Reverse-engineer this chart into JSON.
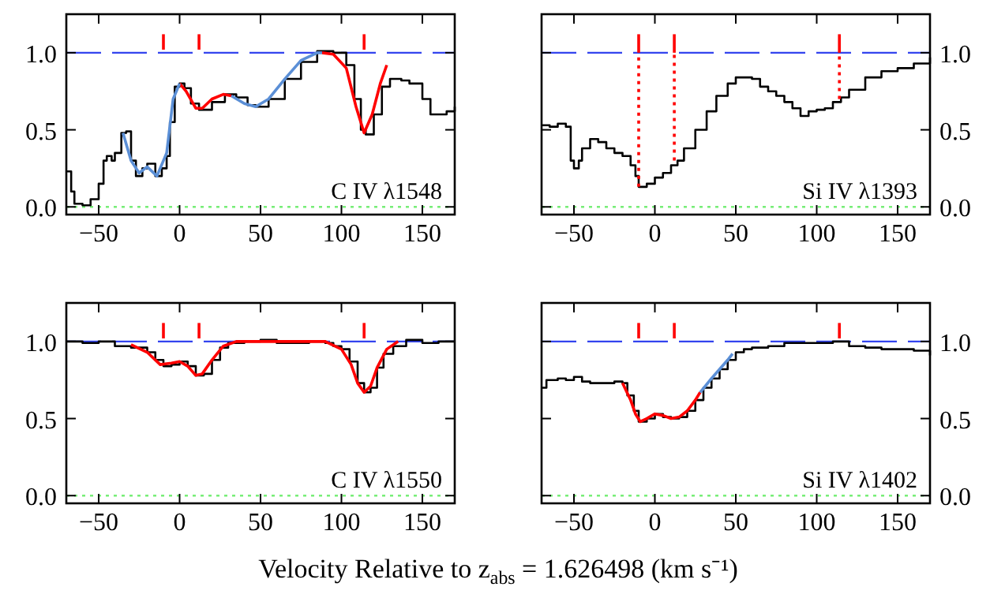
{
  "chart_data": [
    {
      "type": "step",
      "title": "C IV λ1548",
      "xlim": [
        -70,
        170
      ],
      "xticks": [
        -50,
        0,
        50,
        100,
        150
      ],
      "ylim": [
        -0.05,
        1.25
      ],
      "yticks": [
        {
          "value": 0,
          "label": "0.0"
        },
        {
          "value": 0.5,
          "label": "0.5"
        },
        {
          "value": 1,
          "label": "1.0"
        }
      ],
      "ref_lines": [
        {
          "axis": "y",
          "value": 1,
          "color": "#3344ee",
          "line_style": "dashed"
        },
        {
          "axis": "y",
          "value": 0,
          "color": "#77ee77",
          "line_style": "dotted"
        }
      ],
      "series": [
        {
          "color": "#000000",
          "x": [
            -70,
            -67,
            -65,
            -60,
            -55,
            -50,
            -47,
            -45,
            -42,
            -40,
            -36,
            -33,
            -30,
            -27,
            -23,
            -20,
            -15,
            -11,
            -8,
            -6,
            -3,
            0,
            3,
            7,
            12,
            20,
            28,
            35,
            42,
            47,
            55,
            65,
            75,
            85,
            95,
            103,
            108,
            112,
            115,
            120,
            125,
            130,
            137,
            142,
            150,
            155,
            160,
            165,
            170
          ],
          "values": [
            0.23,
            0.1,
            0.02,
            0.01,
            0.05,
            0.15,
            0.3,
            0.33,
            0.3,
            0.35,
            0.48,
            0.49,
            0.3,
            0.2,
            0.25,
            0.28,
            0.2,
            0.25,
            0.33,
            0.55,
            0.78,
            0.8,
            0.77,
            0.67,
            0.63,
            0.68,
            0.73,
            0.71,
            0.66,
            0.65,
            0.7,
            0.83,
            0.94,
            1.01,
            1.0,
            0.92,
            0.7,
            0.5,
            0.47,
            0.6,
            0.78,
            0.83,
            0.82,
            0.8,
            0.7,
            0.6,
            0.6,
            0.62,
            0.65
          ]
        },
        {
          "type": "line",
          "color": "#ff0000",
          "x": [
            0,
            4,
            10,
            14,
            20,
            27,
            32,
            60,
            88,
            95,
            103,
            109,
            114,
            119,
            124,
            128
          ],
          "values": [
            0.8,
            0.75,
            0.64,
            0.64,
            0.7,
            0.73,
            0.72,
            null,
            1.0,
            0.99,
            0.9,
            0.65,
            0.48,
            0.6,
            0.8,
            0.92
          ]
        },
        {
          "type": "line",
          "color": "#5b8fd6",
          "x": [
            -35,
            -30,
            -25,
            -20,
            -14,
            -8,
            -4,
            0,
            16,
            32,
            40,
            47,
            55,
            65,
            75,
            85,
            88
          ],
          "values": [
            0.48,
            0.3,
            0.22,
            0.26,
            0.2,
            0.35,
            0.7,
            0.8,
            null,
            0.72,
            0.67,
            0.65,
            0.7,
            0.83,
            0.95,
            1.0,
            1.0
          ]
        },
        {
          "type": "line",
          "color": "#ff0000",
          "x": [
            -10,
            -10
          ],
          "values": [
            1.02,
            1.12
          ]
        },
        {
          "type": "line",
          "color": "#ff0000",
          "x": [
            12,
            12
          ],
          "values": [
            1.02,
            1.12
          ]
        },
        {
          "type": "line",
          "color": "#ff0000",
          "x": [
            114,
            114
          ],
          "values": [
            1.02,
            1.12
          ]
        }
      ]
    },
    {
      "type": "step",
      "title": "Si IV λ1393",
      "xlim": [
        -70,
        170
      ],
      "xticks": [
        -50,
        0,
        50,
        100,
        150
      ],
      "ylim": [
        -0.05,
        1.25
      ],
      "yticks": [
        {
          "value": 0,
          "label": "0.0"
        },
        {
          "value": 0.5,
          "label": "0.5"
        },
        {
          "value": 1,
          "label": "1.0"
        }
      ],
      "ref_lines": [
        {
          "axis": "y",
          "value": 1,
          "color": "#3344ee",
          "line_style": "dashed"
        },
        {
          "axis": "y",
          "value": 0,
          "color": "#77ee77",
          "line_style": "dotted"
        }
      ],
      "series": [
        {
          "color": "#000000",
          "x": [
            -70,
            -65,
            -60,
            -55,
            -52,
            -50,
            -47,
            -45,
            -40,
            -35,
            -30,
            -25,
            -20,
            -15,
            -12,
            -10,
            -5,
            0,
            5,
            10,
            14,
            18,
            25,
            32,
            38,
            45,
            50,
            55,
            60,
            65,
            70,
            75,
            80,
            85,
            90,
            95,
            100,
            105,
            110,
            115,
            120,
            130,
            140,
            150,
            160,
            170
          ],
          "values": [
            0.53,
            0.52,
            0.54,
            0.52,
            0.3,
            0.25,
            0.3,
            0.38,
            0.44,
            0.42,
            0.38,
            0.35,
            0.33,
            0.27,
            0.2,
            0.13,
            0.15,
            0.19,
            0.22,
            0.27,
            0.3,
            0.38,
            0.5,
            0.62,
            0.72,
            0.8,
            0.84,
            0.84,
            0.83,
            0.78,
            0.75,
            0.72,
            0.68,
            0.64,
            0.59,
            0.62,
            0.63,
            0.64,
            0.68,
            0.71,
            0.76,
            0.84,
            0.88,
            0.9,
            0.93,
            0.97
          ]
        },
        {
          "type": "line",
          "color": "#ff0000",
          "x": [
            -10,
            -10
          ],
          "values": [
            1.0,
            1.12
          ]
        },
        {
          "type": "line",
          "color": "#ff0000",
          "x": [
            12,
            12
          ],
          "values": [
            1.0,
            1.12
          ]
        },
        {
          "type": "line",
          "color": "#ff0000",
          "x": [
            114,
            114
          ],
          "values": [
            1.0,
            1.12
          ]
        },
        {
          "type": "line",
          "color": "#ff0000",
          "line_style": "dotted",
          "x": [
            -10,
            -10
          ],
          "values": [
            0.13,
            1.0
          ]
        },
        {
          "type": "line",
          "color": "#ff0000",
          "line_style": "dotted",
          "x": [
            12,
            12
          ],
          "values": [
            0.3,
            1.0
          ]
        },
        {
          "type": "line",
          "color": "#ff0000",
          "line_style": "dotted",
          "x": [
            114,
            114
          ],
          "values": [
            0.7,
            1.0
          ]
        }
      ]
    },
    {
      "type": "step",
      "title": "C IV λ1550",
      "xlabel": "Velocity Relative to z$_{abs}$ = 1.626498 (km s⁻¹)",
      "xlim": [
        -70,
        170
      ],
      "xticks": [
        -50,
        0,
        50,
        100,
        150
      ],
      "ylim": [
        -0.05,
        1.25
      ],
      "yticks": [
        {
          "value": 0,
          "label": "0.0"
        },
        {
          "value": 0.5,
          "label": "0.5"
        },
        {
          "value": 1,
          "label": "1.0"
        }
      ],
      "ref_lines": [
        {
          "axis": "y",
          "value": 1,
          "color": "#3344ee",
          "line_style": "dashed"
        },
        {
          "axis": "y",
          "value": 0,
          "color": "#77ee77",
          "line_style": "dotted"
        }
      ],
      "series": [
        {
          "color": "#000000",
          "x": [
            -70,
            -60,
            -50,
            -40,
            -30,
            -20,
            -15,
            -10,
            -5,
            0,
            5,
            10,
            15,
            20,
            25,
            30,
            40,
            50,
            60,
            70,
            80,
            90,
            95,
            100,
            105,
            110,
            114,
            118,
            122,
            126,
            132,
            140,
            150,
            160,
            170
          ],
          "values": [
            1.0,
            0.99,
            1.0,
            0.97,
            0.96,
            0.93,
            0.88,
            0.84,
            0.85,
            0.87,
            0.84,
            0.78,
            0.79,
            0.88,
            0.96,
            0.99,
            1.0,
            1.01,
            0.99,
            0.99,
            1.0,
            0.99,
            0.97,
            0.95,
            0.87,
            0.73,
            0.67,
            0.7,
            0.83,
            0.92,
            0.97,
            1.01,
            0.99,
            1.0,
            1.0
          ]
        },
        {
          "type": "line",
          "color": "#ff0000",
          "x": [
            -30,
            -20,
            -12,
            -5,
            0,
            5,
            10,
            14,
            20,
            27,
            35,
            90,
            100,
            106,
            110,
            114,
            118,
            122,
            128,
            135
          ],
          "values": [
            0.98,
            0.93,
            0.85,
            0.86,
            0.87,
            0.84,
            0.78,
            0.79,
            0.88,
            0.97,
            1.0,
            1.0,
            0.95,
            0.85,
            0.73,
            0.67,
            0.71,
            0.83,
            0.95,
            1.0
          ]
        },
        {
          "type": "line",
          "color": "#ff0000",
          "x": [
            -10,
            -10
          ],
          "values": [
            1.02,
            1.12
          ]
        },
        {
          "type": "line",
          "color": "#ff0000",
          "x": [
            12,
            12
          ],
          "values": [
            1.02,
            1.12
          ]
        },
        {
          "type": "line",
          "color": "#ff0000",
          "x": [
            114,
            114
          ],
          "values": [
            1.02,
            1.12
          ]
        }
      ]
    },
    {
      "type": "step",
      "title": "Si IV λ1402",
      "xlim": [
        -70,
        170
      ],
      "xticks": [
        -50,
        0,
        50,
        100,
        150
      ],
      "ylim": [
        -0.05,
        1.25
      ],
      "yticks": [
        {
          "value": 0,
          "label": "0.0"
        },
        {
          "value": 0.5,
          "label": "0.5"
        },
        {
          "value": 1,
          "label": "1.0"
        }
      ],
      "ref_lines": [
        {
          "axis": "y",
          "value": 1,
          "color": "#3344ee",
          "line_style": "dashed"
        },
        {
          "axis": "y",
          "value": 0,
          "color": "#77ee77",
          "line_style": "dotted"
        }
      ],
      "series": [
        {
          "color": "#000000",
          "x": [
            -70,
            -67,
            -60,
            -55,
            -50,
            -45,
            -40,
            -30,
            -25,
            -20,
            -17,
            -13,
            -10,
            -5,
            0,
            5,
            10,
            15,
            20,
            25,
            30,
            35,
            40,
            45,
            50,
            55,
            60,
            70,
            80,
            90,
            100,
            110,
            120,
            130,
            140,
            150,
            160,
            170
          ],
          "values": [
            0.7,
            0.75,
            0.76,
            0.75,
            0.77,
            0.74,
            0.73,
            0.73,
            0.74,
            0.73,
            0.65,
            0.55,
            0.48,
            0.5,
            0.53,
            0.51,
            0.5,
            0.51,
            0.55,
            0.62,
            0.7,
            0.76,
            0.82,
            0.88,
            0.93,
            0.95,
            0.96,
            0.97,
            0.99,
            0.99,
            0.99,
            1.0,
            0.97,
            0.96,
            0.95,
            0.95,
            0.94,
            0.91
          ]
        },
        {
          "type": "line",
          "color": "#ff0000",
          "x": [
            -20,
            -15,
            -12,
            -9,
            -5,
            0,
            5,
            10,
            15,
            20,
            25,
            28
          ],
          "values": [
            0.73,
            0.62,
            0.53,
            0.48,
            0.5,
            0.53,
            0.52,
            0.5,
            0.51,
            0.55,
            0.62,
            0.67
          ]
        },
        {
          "type": "line",
          "color": "#5b8fd6",
          "x": [
            28,
            35,
            40,
            45,
            48
          ],
          "values": [
            0.67,
            0.76,
            0.82,
            0.88,
            0.92
          ]
        },
        {
          "type": "line",
          "color": "#ff0000",
          "x": [
            -10,
            -10
          ],
          "values": [
            1.02,
            1.12
          ]
        },
        {
          "type": "line",
          "color": "#ff0000",
          "x": [
            12,
            12
          ],
          "values": [
            1.02,
            1.12
          ]
        },
        {
          "type": "line",
          "color": "#ff0000",
          "x": [
            114,
            114
          ],
          "values": [
            1.02,
            1.12
          ]
        }
      ]
    }
  ]
}
